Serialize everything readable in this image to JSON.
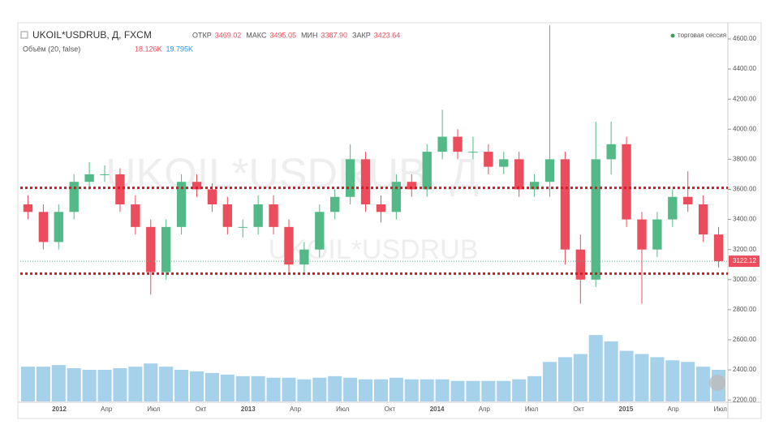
{
  "chart_data": {
    "type": "candlestick",
    "title": "UKOIL*USDRUB, Д, FXCM",
    "stats": [
      {
        "name": "ОТКР",
        "value": "3469.02"
      },
      {
        "name": "МАКС",
        "value": "3495.05"
      },
      {
        "name": "МИН",
        "value": "3387.90"
      },
      {
        "name": "ЗАКР",
        "value": "3423.64"
      }
    ],
    "volume_title": "Объём (20, false)",
    "volume_stats": [
      {
        "value": "18.126K",
        "color": "#eb4d5c"
      },
      {
        "value": "19.795K",
        "color": "#2196f3"
      }
    ],
    "session": "торговая сессия",
    "watermark": "UKOIL*USDRUB, Д",
    "watermark_small": "UKOIL*USDRUB",
    "x_labels": [
      "2012",
      "Апр",
      "Июл",
      "Окт",
      "2013",
      "Апр",
      "Июл",
      "Окт",
      "2014",
      "Апр",
      "Июл",
      "Окт",
      "2015",
      "Апр",
      "Июл"
    ],
    "open": [
      3500,
      3450,
      3250,
      3450,
      3650,
      3700,
      3700,
      3500,
      3350,
      3050,
      3350,
      3650,
      3600,
      3500,
      3350,
      3350,
      3500,
      3350,
      3100,
      3200,
      3450,
      3550,
      3800,
      3500,
      3450,
      3650,
      3600,
      3850,
      3950,
      3850,
      3850,
      3750,
      3800,
      3600,
      3650,
      3800,
      3200,
      3000,
      3800,
      3900,
      3400,
      3200,
      3400,
      3550,
      3500,
      3300
    ],
    "high": [
      3560,
      3500,
      3500,
      3700,
      3780,
      3760,
      3740,
      3560,
      3400,
      3400,
      3700,
      3700,
      3640,
      3550,
      3400,
      3560,
      3560,
      3400,
      3250,
      3500,
      3600,
      3900,
      3850,
      3560,
      3700,
      3700,
      3900,
      4130,
      4000,
      3950,
      3900,
      3850,
      3850,
      3700,
      4690,
      3850,
      3300,
      4050,
      4050,
      3950,
      3450,
      3450,
      3600,
      3720,
      3560,
      3350
    ],
    "low": [
      3400,
      3200,
      3200,
      3400,
      3600,
      3650,
      3450,
      3300,
      2900,
      3000,
      3300,
      3550,
      3450,
      3300,
      3280,
      3300,
      3300,
      3050,
      3050,
      3150,
      3400,
      3500,
      3450,
      3380,
      3400,
      3550,
      3550,
      3800,
      3800,
      3800,
      3700,
      3700,
      3550,
      3550,
      3550,
      3100,
      2840,
      2950,
      3700,
      3350,
      2840,
      3150,
      3350,
      3450,
      3250,
      3080
    ],
    "close": [
      3450,
      3250,
      3450,
      3650,
      3700,
      3700,
      3500,
      3350,
      3050,
      3350,
      3650,
      3600,
      3500,
      3350,
      3350,
      3500,
      3350,
      3100,
      3200,
      3450,
      3550,
      3800,
      3500,
      3450,
      3650,
      3600,
      3850,
      3950,
      3850,
      3850,
      3750,
      3800,
      3600,
      3650,
      3800,
      3200,
      3000,
      3800,
      3900,
      3400,
      3200,
      3400,
      3550,
      3500,
      3300,
      3122
    ],
    "volume": {
      "axis": "y2",
      "values": [
        22,
        22,
        23,
        21,
        20,
        20,
        21,
        22,
        24,
        22,
        20,
        19,
        18,
        17,
        16,
        16,
        15,
        15,
        14,
        15,
        16,
        15,
        14,
        14,
        15,
        14,
        14,
        14,
        13,
        13,
        13,
        13,
        14,
        16,
        25,
        28,
        30,
        42,
        38,
        32,
        30,
        28,
        26,
        25,
        22,
        20
      ]
    },
    "up_color": "#53b987",
    "down_color": "#eb4d5c",
    "volume_color": "#8ec5e6",
    "ylim": [
      2190,
      4697
    ],
    "y2lim": [
      0,
      60
    ],
    "yticks": [
      {
        "value": 2200,
        "label": "2200.00"
      },
      {
        "value": 2400,
        "label": "2400.00"
      },
      {
        "value": 2600,
        "label": "2600.00"
      },
      {
        "value": 2800,
        "label": "2800.00"
      },
      {
        "value": 3000,
        "label": "3000.00"
      },
      {
        "value": 3200,
        "label": "3200.00"
      },
      {
        "value": 3400,
        "label": "3400.00"
      },
      {
        "value": 3600,
        "label": "3600.00"
      },
      {
        "value": 3800,
        "label": "3800.00"
      },
      {
        "value": 4000,
        "label": "4000.00"
      },
      {
        "value": 4200,
        "label": "4200.00"
      },
      {
        "value": 4400,
        "label": "4400.00"
      },
      {
        "value": 4600,
        "label": "4600.00"
      }
    ],
    "levels": [
      3610,
      3040
    ],
    "level_color": "#e0141e",
    "last": 3122.12
  }
}
